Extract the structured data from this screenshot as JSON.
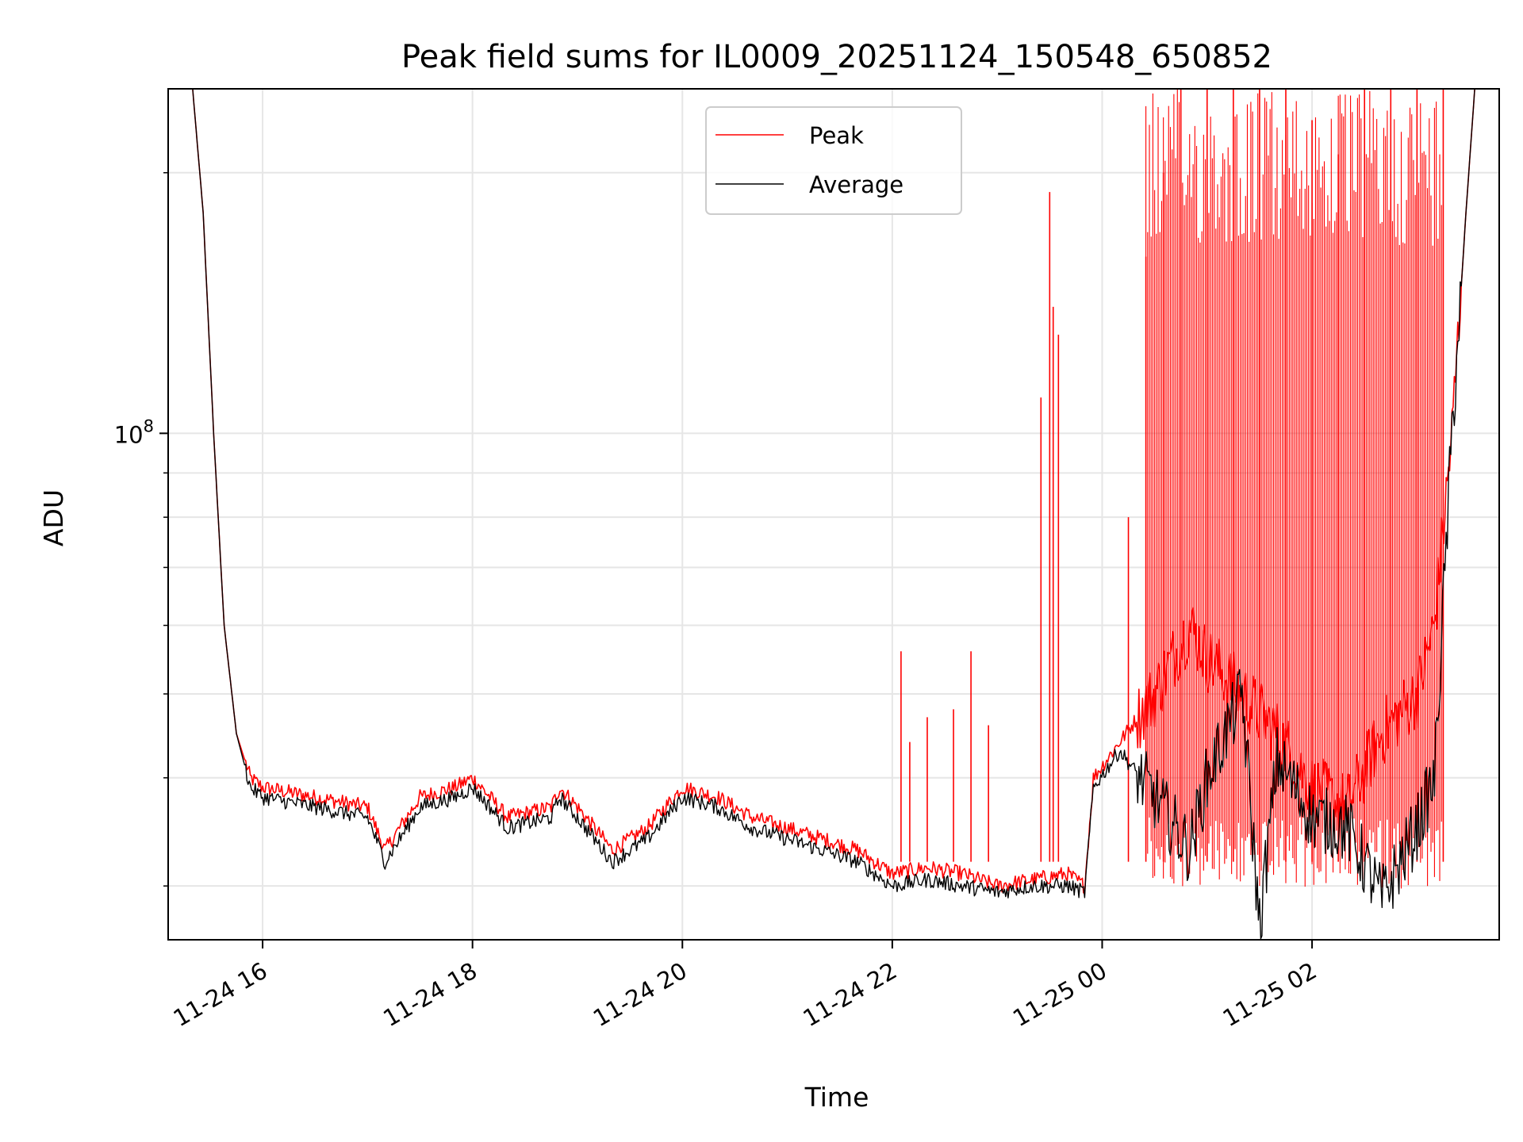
{
  "chart_data": {
    "type": "line",
    "title": "Peak field sums for IL0009_20251124_150548_650852",
    "xlabel": "Time",
    "ylabel": "ADU",
    "y_scale": "log",
    "ylim": [
      26000000.0,
      250000000.0
    ],
    "xlim": [
      "2025-11-24 15:06",
      "2025-11-25 03:47"
    ],
    "grid": true,
    "legend": {
      "placement": "top-center",
      "entries": [
        "Peak",
        "Average"
      ]
    },
    "x_ticks": [
      {
        "t": "2025-11-24 16:00",
        "label": "11-24 16"
      },
      {
        "t": "2025-11-24 18:00",
        "label": "11-24 18"
      },
      {
        "t": "2025-11-24 20:00",
        "label": "11-24 20"
      },
      {
        "t": "2025-11-24 22:00",
        "label": "11-24 22"
      },
      {
        "t": "2025-11-25 00:00",
        "label": "11-25 00"
      },
      {
        "t": "2025-11-25 02:00",
        "label": "11-25 02"
      }
    ],
    "y_ticks": [
      {
        "value": 100000000.0,
        "label_base": "10",
        "label_exp": "8"
      }
    ],
    "series": [
      {
        "name": "Peak",
        "color": "#ff0000",
        "points": [
          [
            "2025-11-24 15:06",
            250000000.0
          ],
          [
            "2025-11-24 15:20",
            250000000.0
          ],
          [
            "2025-11-24 15:26",
            180000000.0
          ],
          [
            "2025-11-24 15:32",
            100000000.0
          ],
          [
            "2025-11-24 15:38",
            60000000.0
          ],
          [
            "2025-11-24 15:45",
            45000000.0
          ],
          [
            "2025-11-24 15:53",
            40000000.0
          ],
          [
            "2025-11-24 16:00",
            39000000.0
          ],
          [
            "2025-11-24 16:30",
            38000000.0
          ],
          [
            "2025-11-24 17:00",
            37000000.0
          ],
          [
            "2025-11-24 17:10",
            33000000.0
          ],
          [
            "2025-11-24 17:30",
            38000000.0
          ],
          [
            "2025-11-24 17:50",
            39000000.0
          ],
          [
            "2025-11-24 18:00",
            40000000.0
          ],
          [
            "2025-11-24 18:10",
            38000000.0
          ],
          [
            "2025-11-24 18:20",
            36000000.0
          ],
          [
            "2025-11-24 18:45",
            37000000.0
          ],
          [
            "2025-11-24 18:50",
            39000000.0
          ],
          [
            "2025-11-24 19:00",
            37000000.0
          ],
          [
            "2025-11-24 19:20",
            33000000.0
          ],
          [
            "2025-11-24 19:40",
            35000000.0
          ],
          [
            "2025-11-24 20:00",
            39000000.0
          ],
          [
            "2025-11-24 20:20",
            38000000.0
          ],
          [
            "2025-11-24 20:40",
            36000000.0
          ],
          [
            "2025-11-24 21:00",
            35000000.0
          ],
          [
            "2025-11-24 21:20",
            34000000.0
          ],
          [
            "2025-11-24 21:40",
            33000000.0
          ],
          [
            "2025-11-24 22:00",
            31000000.0
          ],
          [
            "2025-11-24 22:20",
            31500000.0
          ],
          [
            "2025-11-24 22:40",
            31000000.0
          ],
          [
            "2025-11-24 23:00",
            30000000.0
          ],
          [
            "2025-11-24 23:20",
            30500000.0
          ],
          [
            "2025-11-24 23:40",
            31000000.0
          ],
          [
            "2025-11-24 23:50",
            30000000.0
          ],
          [
            "2025-11-24 23:55",
            40000000.0
          ],
          [
            "2025-11-25 00:10",
            44000000.0
          ],
          [
            "2025-11-25 00:30",
            50000000.0
          ],
          [
            "2025-11-25 00:50",
            60000000.0
          ],
          [
            "2025-11-25 01:00",
            55000000.0
          ],
          [
            "2025-11-25 01:20",
            50000000.0
          ],
          [
            "2025-11-25 01:40",
            45000000.0
          ],
          [
            "2025-11-25 02:00",
            39000000.0
          ],
          [
            "2025-11-25 02:20",
            37000000.0
          ],
          [
            "2025-11-25 02:40",
            45000000.0
          ],
          [
            "2025-11-25 03:00",
            50000000.0
          ],
          [
            "2025-11-25 03:10",
            60000000.0
          ],
          [
            "2025-11-25 03:20",
            100000000.0
          ],
          [
            "2025-11-25 03:28",
            180000000.0
          ],
          [
            "2025-11-25 03:33",
            250000000.0
          ],
          [
            "2025-11-25 03:47",
            250000000.0
          ]
        ],
        "spikes": [
          [
            "2025-11-24 22:05",
            56000000.0
          ],
          [
            "2025-11-24 22:10",
            44000000.0
          ],
          [
            "2025-11-24 22:20",
            47000000.0
          ],
          [
            "2025-11-24 22:35",
            48000000.0
          ],
          [
            "2025-11-24 22:45",
            56000000.0
          ],
          [
            "2025-11-24 22:55",
            46000000.0
          ],
          [
            "2025-11-24 23:25",
            110000000.0
          ],
          [
            "2025-11-24 23:30",
            190000000.0
          ],
          [
            "2025-11-24 23:32",
            140000000.0
          ],
          [
            "2025-11-24 23:35",
            130000000.0
          ],
          [
            "2025-11-25 00:15",
            80000000.0
          ],
          [
            "2025-11-25 00:25",
            160000000.0
          ],
          [
            "2025-11-25 00:35",
            200000000.0
          ],
          [
            "2025-11-25 00:45",
            250000000.0
          ],
          [
            "2025-11-25 01:00",
            250000000.0
          ],
          [
            "2025-11-25 01:15",
            250000000.0
          ],
          [
            "2025-11-25 01:30",
            250000000.0
          ],
          [
            "2025-11-25 01:45",
            250000000.0
          ],
          [
            "2025-11-25 02:00",
            230000000.0
          ],
          [
            "2025-11-25 02:15",
            210000000.0
          ],
          [
            "2025-11-25 02:30",
            250000000.0
          ],
          [
            "2025-11-25 02:45",
            250000000.0
          ],
          [
            "2025-11-25 03:00",
            250000000.0
          ],
          [
            "2025-11-25 03:15",
            250000000.0
          ]
        ]
      },
      {
        "name": "Average",
        "color": "#000000",
        "points": [
          [
            "2025-11-24 15:06",
            250000000.0
          ],
          [
            "2025-11-24 15:20",
            250000000.0
          ],
          [
            "2025-11-24 15:26",
            180000000.0
          ],
          [
            "2025-11-24 15:32",
            100000000.0
          ],
          [
            "2025-11-24 15:38",
            60000000.0
          ],
          [
            "2025-11-24 15:45",
            45000000.0
          ],
          [
            "2025-11-24 15:53",
            39000000.0
          ],
          [
            "2025-11-24 16:00",
            38000000.0
          ],
          [
            "2025-11-24 16:30",
            37000000.0
          ],
          [
            "2025-11-24 17:00",
            36000000.0
          ],
          [
            "2025-11-24 17:10",
            32000000.0
          ],
          [
            "2025-11-24 17:30",
            37000000.0
          ],
          [
            "2025-11-24 17:50",
            38000000.0
          ],
          [
            "2025-11-24 18:00",
            39000000.0
          ],
          [
            "2025-11-24 18:10",
            37000000.0
          ],
          [
            "2025-11-24 18:20",
            35000000.0
          ],
          [
            "2025-11-24 18:45",
            36000000.0
          ],
          [
            "2025-11-24 18:50",
            38000000.0
          ],
          [
            "2025-11-24 19:00",
            36000000.0
          ],
          [
            "2025-11-24 19:20",
            32000000.0
          ],
          [
            "2025-11-24 19:40",
            34000000.0
          ],
          [
            "2025-11-24 20:00",
            38000000.0
          ],
          [
            "2025-11-24 20:20",
            37000000.0
          ],
          [
            "2025-11-24 20:40",
            35000000.0
          ],
          [
            "2025-11-24 21:00",
            34000000.0
          ],
          [
            "2025-11-24 21:20",
            33000000.0
          ],
          [
            "2025-11-24 21:40",
            32000000.0
          ],
          [
            "2025-11-24 22:00",
            30000000.0
          ],
          [
            "2025-11-24 22:20",
            30500000.0
          ],
          [
            "2025-11-24 22:40",
            30000000.0
          ],
          [
            "2025-11-24 23:00",
            29500000.0
          ],
          [
            "2025-11-24 23:20",
            30000000.0
          ],
          [
            "2025-11-24 23:40",
            30000000.0
          ],
          [
            "2025-11-24 23:50",
            29500000.0
          ],
          [
            "2025-11-24 23:55",
            39000000.0
          ],
          [
            "2025-11-25 00:10",
            43000000.0
          ],
          [
            "2025-11-25 00:30",
            38000000.0
          ],
          [
            "2025-11-25 00:50",
            33000000.0
          ],
          [
            "2025-11-25 01:00",
            40000000.0
          ],
          [
            "2025-11-25 01:20",
            50000000.0
          ],
          [
            "2025-11-25 01:30",
            27000000.0
          ],
          [
            "2025-11-25 01:40",
            42000000.0
          ],
          [
            "2025-11-25 02:00",
            36000000.0
          ],
          [
            "2025-11-25 02:20",
            35000000.0
          ],
          [
            "2025-11-25 02:40",
            29000000.0
          ],
          [
            "2025-11-25 03:00",
            35000000.0
          ],
          [
            "2025-11-25 03:10",
            40000000.0
          ],
          [
            "2025-11-25 03:20",
            100000000.0
          ],
          [
            "2025-11-25 03:28",
            180000000.0
          ],
          [
            "2025-11-25 03:33",
            250000000.0
          ],
          [
            "2025-11-25 03:47",
            250000000.0
          ]
        ]
      }
    ]
  }
}
